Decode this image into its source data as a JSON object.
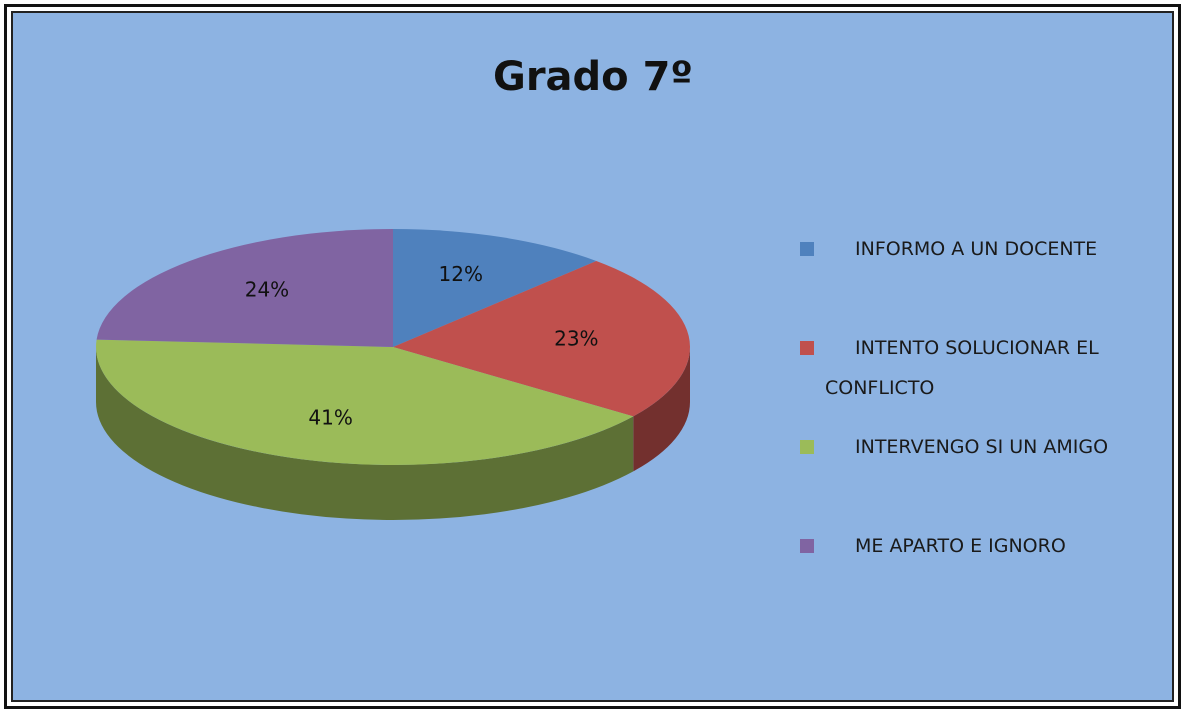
{
  "chart_data": {
    "type": "pie",
    "title": "Grado 7º",
    "categories": [
      "INFORMO A UN DOCENTE",
      "INTENTO  SOLUCIONAR EL CONFLICTO",
      "INTERVENGO  SI UN AMIGO",
      "ME APARTO E IGNORO"
    ],
    "values": [
      12,
      23,
      41,
      24
    ],
    "value_labels": [
      "12%",
      "23%",
      "41%",
      "24%"
    ],
    "colors": [
      "#4f81bd",
      "#c0504d",
      "#9bbb59",
      "#8064a2"
    ],
    "legend": "right"
  }
}
